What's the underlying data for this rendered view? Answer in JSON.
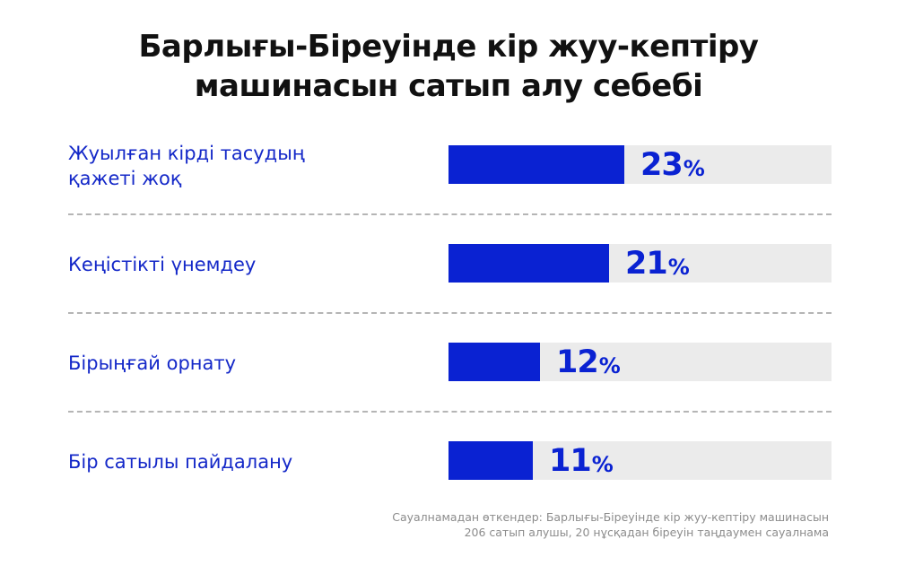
{
  "chart_data": {
    "type": "bar",
    "orientation": "horizontal",
    "title": "Барлығы-Біреуінде кір жуу-кептіру машинасын сатып алу себебі",
    "categories": [
      "Жуылған кірді тасудың қажеті жоқ",
      "Кеңістікті үнемдеу",
      "Бірыңғай орнату",
      "Бір сатылы пайдалану"
    ],
    "values": [
      23,
      21,
      12,
      11
    ],
    "unit": "%",
    "xlim": [
      0,
      50
    ],
    "grid": false,
    "legend": "none",
    "colors": {
      "bar": "#0a22d2",
      "track": "#ebebeb",
      "label": "#1428c8",
      "title": "#111111",
      "footnote": "#8c8c8c",
      "divider": "#b5b5b5"
    }
  },
  "title": {
    "line1": "Барлығы-Біреуінде кір жуу-кептіру",
    "line2": "машинасын сатып алу себебі"
  },
  "rows": [
    {
      "label": "Жуылған кірді тасудың қажеті жоқ",
      "value": "23",
      "unit": "%"
    },
    {
      "label": "Кеңістікті үнемдеу",
      "value": "21",
      "unit": "%"
    },
    {
      "label": "Бірыңғай орнату",
      "value": "12",
      "unit": "%"
    },
    {
      "label": "Бір сатылы пайдалану",
      "value": "11",
      "unit": "%"
    }
  ],
  "footnote": {
    "line1": "Сауалнамадан өткендер: Барлығы-Біреуінде кір жуу-кептіру машинасын",
    "line2": "206 сатып алушы,  20 нұсқадан біреуін таңдаумен сауалнама"
  }
}
